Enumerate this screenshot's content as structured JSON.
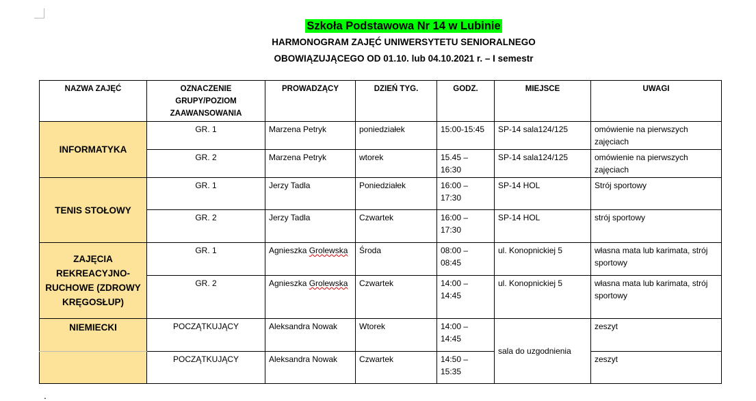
{
  "header": {
    "school": "Szkoła Podstawowa Nr 14 w Lubinie",
    "line1": "HARMONOGRAM ZAJĘĆ UNIWERSYTETU SENIORALNEGO",
    "line2": "OBOWIĄZUJĄCEGO OD 01.10. lub 04.10.2021 r. – I semestr",
    "highlight_color": "#00ff00"
  },
  "table": {
    "columns": [
      "NAZWA ZAJĘĆ",
      "OZNACZENIE GRUPY/POZIOM ZAAWANSOWANIA",
      "PROWADZĄCY",
      "DZIEŃ TYG.",
      "GODZ.",
      "MIEJSCE",
      "UWAGI"
    ],
    "name_color": "#fde39a",
    "courses": [
      {
        "name": "INFORMATYKA",
        "rows": [
          {
            "group": "GR. 1",
            "teacher": "Marzena Petryk",
            "day": "poniedziałek",
            "time": "15:00-15:45",
            "place": "SP-14  sala124/125",
            "notes": "omówienie na pierwszych zajęciach"
          },
          {
            "group": "GR. 2",
            "teacher": "Marzena Petryk",
            "day": "wtorek",
            "time": "15.45 – 16:30",
            "place": " SP-14  sala124/125",
            "notes": "omówienie na pierwszych zajęciach"
          }
        ]
      },
      {
        "name": "TENIS STOŁOWY",
        "rows": [
          {
            "group": "GR. 1",
            "teacher": "Jerzy Tadla",
            "day": "Poniedziałek",
            "time": "16:00 – 17:30",
            "place": "SP-14 HOL",
            "notes": "Strój sportowy"
          },
          {
            "group": "GR. 2",
            "teacher": " Jerzy Tadla",
            "day": "Czwartek",
            "time": "16:00 – 17:30",
            "place": "SP-14 HOL",
            "notes": "strój sportowy"
          }
        ]
      },
      {
        "name": "ZAJĘCIA REKREACYJNO-RUCHOWE (ZDROWY KRĘGOSŁUP)",
        "rows": [
          {
            "group": "GR. 1",
            "teacher": " Agnieszka Grolewska",
            "day": "Środa",
            "time": "08:00 – 08:45",
            "place": "ul. Konopnickiej 5",
            "notes": "własna mata lub karimata, strój sportowy"
          },
          {
            "group": "GR. 2",
            "teacher": "Agnieszka Grolewska",
            "day": "Czwartek",
            "time": "14:00 – 14:45",
            "place": "ul. Konopnickiej 5",
            "notes": "własna mata lub karimata, strój sportowy"
          }
        ]
      },
      {
        "name": "NIEMIECKI",
        "shared_place": "sala do uzgodnienia",
        "rows": [
          {
            "group": "POCZĄTKUJĄCY",
            "teacher": "Aleksandra Nowak",
            "day": "Wtorek",
            "time": "14:00 – 14:45",
            "notes": "zeszyt"
          },
          {
            "group": "POCZĄTKUJĄCY",
            "teacher": "Aleksandra Nowak",
            "day": "Czwartek",
            "time": "14:50 – 15:35",
            "notes": "zeszyt"
          }
        ]
      }
    ]
  },
  "footer_mark": "."
}
